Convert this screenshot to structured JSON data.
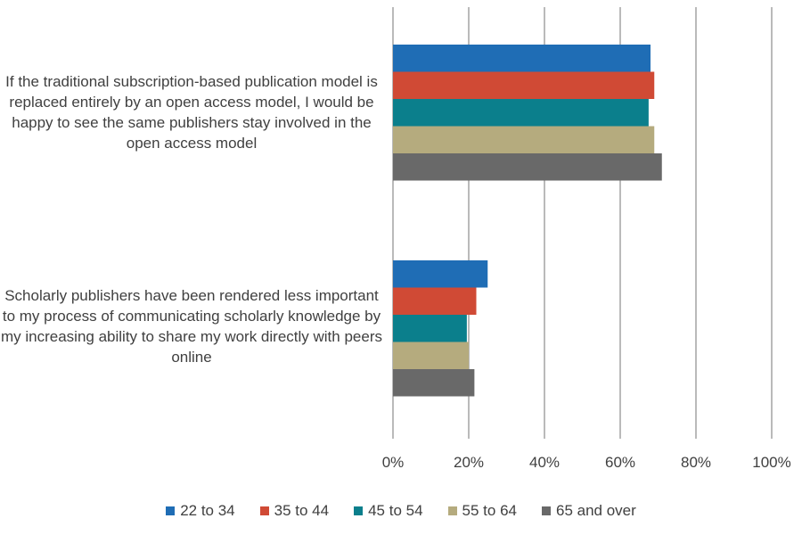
{
  "chart_data": {
    "type": "bar",
    "orientation": "horizontal",
    "categories": [
      "If the traditional subscription-based publication model is replaced entirely by an open access model, I would be happy to see the same publishers stay involved in the open access model",
      "Scholarly publishers have been rendered less important to my process of communicating scholarly knowledge by my increasing ability to share my work directly with peers online"
    ],
    "series": [
      {
        "name": "22 to 34",
        "color": "#1f6db5",
        "values": [
          68,
          25
        ]
      },
      {
        "name": "35 to 44",
        "color": "#d04a35",
        "values": [
          69,
          22
        ]
      },
      {
        "name": "45 to 54",
        "color": "#0b7f8c",
        "values": [
          67.5,
          19.5
        ]
      },
      {
        "name": "55 to 64",
        "color": "#b5ab7e",
        "values": [
          69,
          20
        ]
      },
      {
        "name": "65 and over",
        "color": "#696969",
        "values": [
          71,
          21.5
        ]
      }
    ],
    "xlim": [
      0,
      100
    ],
    "x_ticks": [
      "0%",
      "20%",
      "40%",
      "60%",
      "80%",
      "100%"
    ],
    "grid": true,
    "legend_position": "bottom"
  }
}
